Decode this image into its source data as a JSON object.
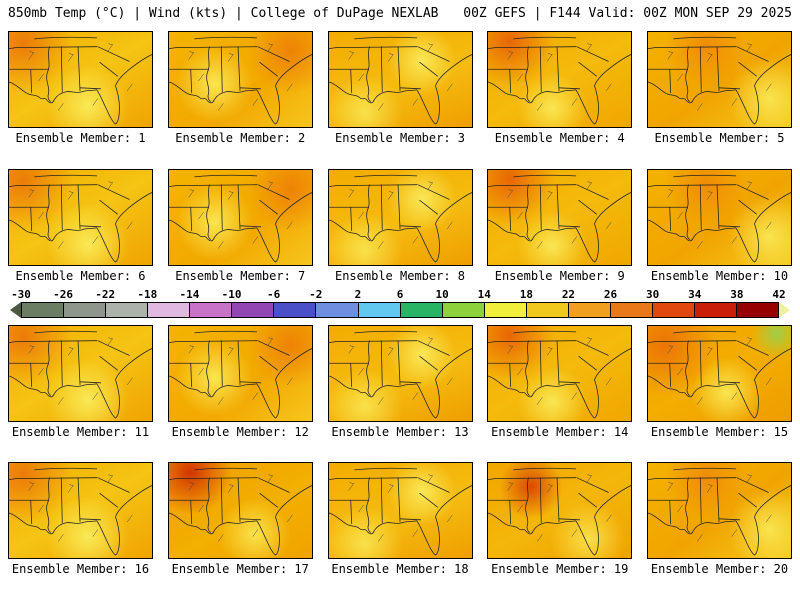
{
  "header": {
    "left": "850mb Temp (°C) | Wind (kts) | College of DuPage NEXLAB",
    "right": "00Z GEFS | F144 Valid: 00Z MON SEP 29 2025"
  },
  "members": [
    "Ensemble Member: 1",
    "Ensemble Member: 2",
    "Ensemble Member: 3",
    "Ensemble Member: 4",
    "Ensemble Member: 5",
    "Ensemble Member: 6",
    "Ensemble Member: 7",
    "Ensemble Member: 8",
    "Ensemble Member: 9",
    "Ensemble Member: 10",
    "Ensemble Member: 11",
    "Ensemble Member: 12",
    "Ensemble Member: 13",
    "Ensemble Member: 14",
    "Ensemble Member: 15",
    "Ensemble Member: 16",
    "Ensemble Member: 17",
    "Ensemble Member: 18",
    "Ensemble Member: 19",
    "Ensemble Member: 20"
  ],
  "colorbar": {
    "ticks": [
      "-30",
      "-26",
      "-22",
      "-18",
      "-14",
      "-10",
      "-6",
      "-2",
      "2",
      "6",
      "10",
      "14",
      "18",
      "22",
      "26",
      "30",
      "34",
      "38",
      "42"
    ],
    "segment_colors": [
      "#6b7d62",
      "#8e958b",
      "#adb3aa",
      "#e0b8e0",
      "#c873c8",
      "#9146b4",
      "#4a50c8",
      "#6e8fe0",
      "#63c8f0",
      "#28b464",
      "#8cd23c",
      "#f0f03c",
      "#f0c81e",
      "#f0a01e",
      "#e87818",
      "#e04810",
      "#c81e0a",
      "#960000"
    ],
    "left_arrow_color": "#4a5a40",
    "right_arrow_color": "#f0f0a0"
  },
  "map_palette": {
    "base_orange": "#F3AE00",
    "warm_yellow": "#FAEC5A",
    "hot_orange": "#E8640A",
    "hot_red": "#D02800",
    "cool_green_spot": "#96D250",
    "border_line": "#262626"
  }
}
